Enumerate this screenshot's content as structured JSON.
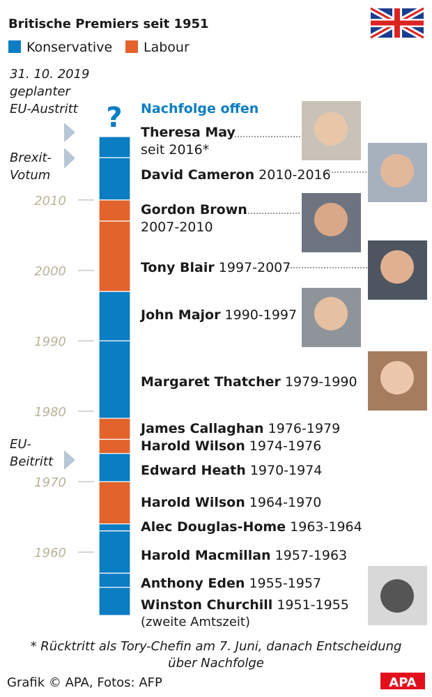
{
  "chart_data": {
    "type": "timeline",
    "title": "Britische Premiers seit 1951",
    "series": [
      {
        "name": "Konservative",
        "color": "#0b7dc2"
      },
      {
        "name": "Labour",
        "color": "#e2632b"
      }
    ],
    "ylim": [
      1951,
      2019
    ],
    "yticks": [
      1960,
      1970,
      1980,
      1990,
      2000,
      2010
    ],
    "successor": "Nachfolge offen",
    "question": "?",
    "segments": [
      {
        "name": "Theresa May",
        "period": "seit 2016*",
        "start": 2016,
        "end": 2019,
        "color": "#0b7dc2"
      },
      {
        "name": "David Cameron",
        "period": "2010-2016",
        "start": 2010,
        "end": 2016,
        "color": "#0b7dc2"
      },
      {
        "name": "Gordon Brown",
        "period": "2007-2010",
        "start": 2007,
        "end": 2010,
        "color": "#e2632b"
      },
      {
        "name": "Tony Blair",
        "period": "1997-2007",
        "start": 1997,
        "end": 2007,
        "color": "#e2632b"
      },
      {
        "name": "John Major",
        "period": "1990-1997",
        "start": 1990,
        "end": 1997,
        "color": "#0b7dc2"
      },
      {
        "name": "Margaret Thatcher",
        "period": "1979-1990",
        "start": 1979,
        "end": 1990,
        "color": "#0b7dc2"
      },
      {
        "name": "James Callaghan",
        "period": "1976-1979",
        "start": 1976,
        "end": 1979,
        "color": "#e2632b"
      },
      {
        "name": "Harold Wilson",
        "period": "1974-1976",
        "start": 1974,
        "end": 1976,
        "color": "#e2632b"
      },
      {
        "name": "Edward Heath",
        "period": "1970-1974",
        "start": 1970,
        "end": 1974,
        "color": "#0b7dc2"
      },
      {
        "name": "Harold Wilson",
        "period": "1964-1970",
        "start": 1964,
        "end": 1970,
        "color": "#e2632b"
      },
      {
        "name": "Alec Douglas-Home",
        "period": "1963-1964",
        "start": 1963,
        "end": 1964,
        "color": "#0b7dc2"
      },
      {
        "name": "Harold Macmillan",
        "period": "1957-1963",
        "start": 1957,
        "end": 1963,
        "color": "#0b7dc2"
      },
      {
        "name": "Anthony Eden",
        "period": "1955-1957",
        "start": 1955,
        "end": 1957,
        "color": "#0b7dc2"
      },
      {
        "name": "Winston Churchill",
        "period": "1951-1955",
        "start": 1951,
        "end": 1955,
        "color": "#0b7dc2"
      }
    ],
    "annotations": [
      [
        "31. 10. 2019",
        "geplanter",
        "EU-Austritt"
      ],
      [
        "Brexit-",
        "Votum"
      ],
      [
        "EU-",
        "Beitritt"
      ]
    ],
    "footnote": [
      "* Rücktritt als Tory-Chefin am 7. Juni, danach Entscheidung",
      "über Nachfolge"
    ],
    "credit": "Grafik © APA, Fotos: AFP",
    "logo": "APA",
    "extra_line": "(zweite Amtszeit)"
  }
}
